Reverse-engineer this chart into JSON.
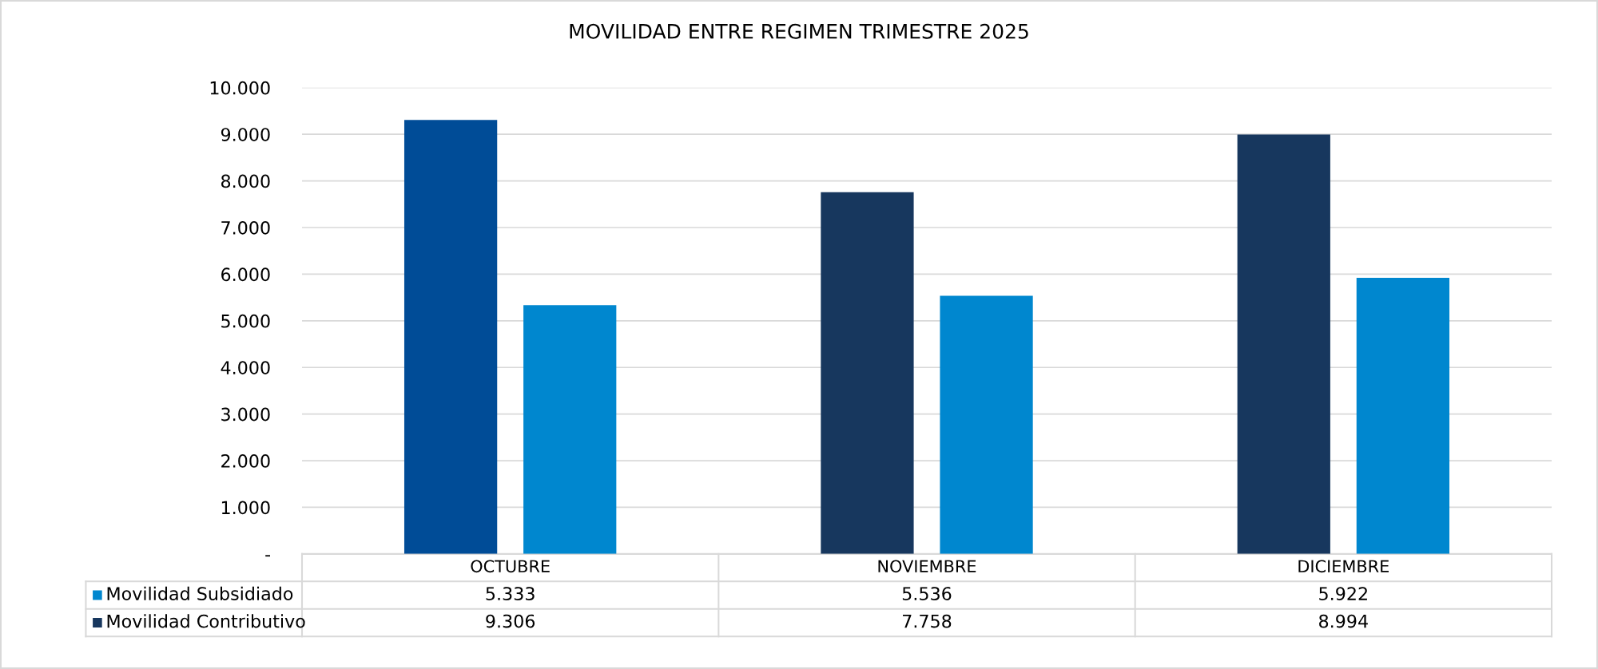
{
  "chart_data": {
    "type": "bar",
    "title": "MOVILIDAD ENTRE REGIMEN TRIMESTRE 2025",
    "categories": [
      "OCTUBRE",
      "NOVIEMBRE",
      "DICIEMBRE"
    ],
    "series": [
      {
        "name": "Movilidad Contributivo",
        "color": "#17375e",
        "colors": [
          "#004c97",
          "#17375e",
          "#17375e"
        ],
        "values": [
          9306,
          7758,
          8994
        ],
        "value_labels": [
          "9.306",
          "7.758",
          "8.994"
        ]
      },
      {
        "name": "Movilidad Subsidiado",
        "color": "#0087cf",
        "values": [
          5333,
          5536,
          5922
        ],
        "value_labels": [
          "5.333",
          "5.536",
          "5.922"
        ]
      }
    ],
    "ylim": [
      0,
      10000
    ],
    "yticks": [
      {
        "value": 0,
        "label": "-"
      },
      {
        "value": 1000,
        "label": "1.000"
      },
      {
        "value": 2000,
        "label": "2.000"
      },
      {
        "value": 3000,
        "label": "3.000"
      },
      {
        "value": 4000,
        "label": "4.000"
      },
      {
        "value": 5000,
        "label": "5.000"
      },
      {
        "value": 6000,
        "label": "6.000"
      },
      {
        "value": 7000,
        "label": "7.000"
      },
      {
        "value": 8000,
        "label": "8.000"
      },
      {
        "value": 9000,
        "label": "9.000"
      },
      {
        "value": 10000,
        "label": "10.000"
      }
    ],
    "grid": "y",
    "legend": "bottom"
  }
}
